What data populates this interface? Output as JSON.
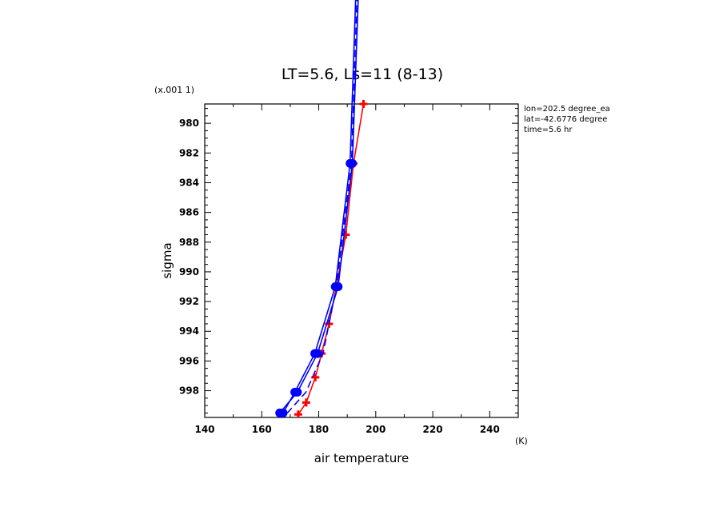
{
  "chart_data": {
    "type": "line",
    "title": "LT=5.6, Ls=11 (8-13)",
    "xlabel": "air temperature",
    "ylabel": "sigma",
    "x_unit": "(K)",
    "y_unit": "(x.001 1)",
    "xlim": [
      140,
      250
    ],
    "ylim": [
      999.8,
      978.7
    ],
    "y_inverted": true,
    "x_ticks": [
      140,
      160,
      180,
      200,
      220,
      240
    ],
    "y_ticks": [
      980,
      982,
      984,
      986,
      988,
      990,
      992,
      994,
      996,
      998
    ],
    "info_lines": [
      "lon=202.5 degree_ea",
      "lat=-42.6776 degree",
      "time=5.6 hr"
    ],
    "series": [
      {
        "color": "#ff0000",
        "marker": "cross",
        "dash": "solid",
        "points": [
          [
            195.7,
            978.7
          ],
          [
            192.2,
            982.7
          ],
          [
            189.5,
            987.5
          ],
          [
            186.2,
            991.0
          ],
          [
            183.6,
            993.5
          ],
          [
            181.0,
            995.5
          ],
          [
            178.8,
            997.1
          ],
          [
            175.6,
            998.8
          ],
          [
            172.8,
            999.6
          ]
        ]
      },
      {
        "color": "#0000ff",
        "marker": "dot",
        "dash": "solid",
        "points": [
          [
            196.0,
            960.0
          ],
          [
            191.8,
            982.7
          ],
          [
            186.8,
            991.0
          ],
          [
            179.6,
            995.5
          ],
          [
            172.5,
            998.1
          ],
          [
            166.3,
            999.5
          ]
        ]
      },
      {
        "color": "#0000ff",
        "marker": "dot",
        "dash": "solid",
        "points": [
          [
            195.0,
            960.0
          ],
          [
            191.0,
            982.7
          ],
          [
            185.8,
            991.0
          ],
          [
            178.6,
            995.5
          ],
          [
            171.6,
            998.1
          ],
          [
            167.5,
            999.5
          ]
        ]
      },
      {
        "color": "#0000ff",
        "marker": "none",
        "dash": "dashed",
        "points": [
          [
            195.4,
            960.0
          ],
          [
            191.5,
            982.7
          ],
          [
            186.2,
            991.0
          ],
          [
            181.5,
            995.5
          ],
          [
            175.5,
            998.1
          ],
          [
            169.0,
            999.5
          ]
        ]
      }
    ]
  }
}
